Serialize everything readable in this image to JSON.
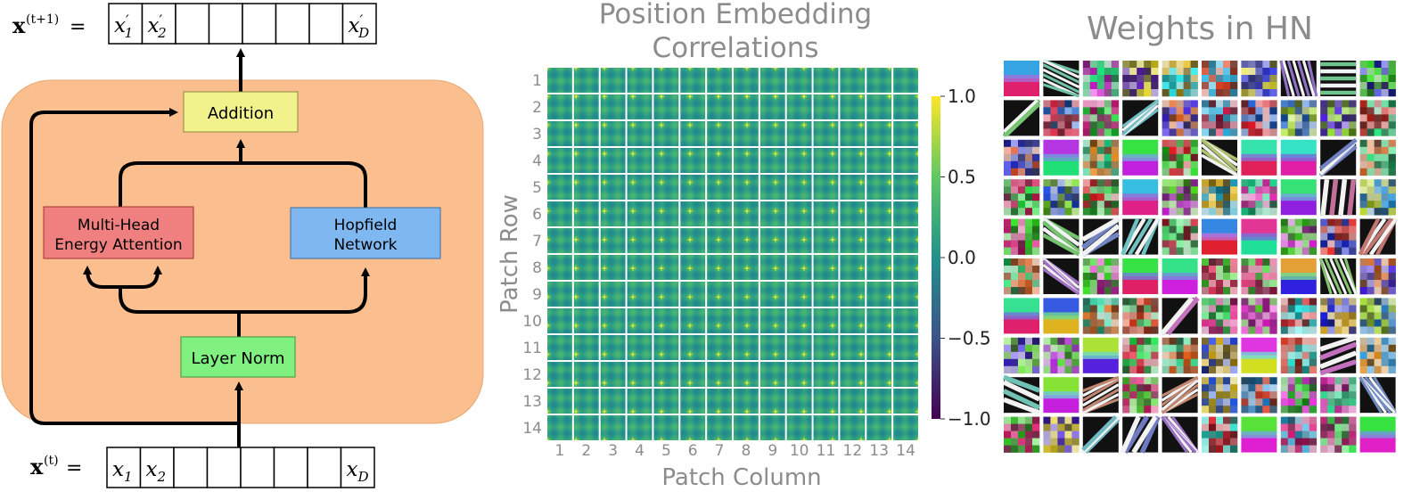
{
  "diagram": {
    "output_label": "x(t+1) =",
    "output_vec": {
      "bold": "x",
      "sup": "(t+1)",
      "cells": [
        {
          "base": "x",
          "prime": "′",
          "sub": "1"
        },
        {
          "base": "x",
          "prime": "′",
          "sub": "2"
        },
        {
          "base": "",
          "prime": "",
          "sub": ""
        },
        {
          "base": "",
          "prime": "",
          "sub": ""
        },
        {
          "base": "",
          "prime": "",
          "sub": ""
        },
        {
          "base": "",
          "prime": "",
          "sub": ""
        },
        {
          "base": "",
          "prime": "",
          "sub": ""
        },
        {
          "base": "x",
          "prime": "′",
          "sub": "D"
        }
      ]
    },
    "input_vec": {
      "bold": "x",
      "sup": "(t)",
      "cells": [
        {
          "base": "x",
          "prime": "",
          "sub": "1"
        },
        {
          "base": "x",
          "prime": "",
          "sub": "2"
        },
        {
          "base": "",
          "prime": "",
          "sub": ""
        },
        {
          "base": "",
          "prime": "",
          "sub": ""
        },
        {
          "base": "",
          "prime": "",
          "sub": ""
        },
        {
          "base": "",
          "prime": "",
          "sub": ""
        },
        {
          "base": "",
          "prime": "",
          "sub": ""
        },
        {
          "base": "x",
          "prime": "",
          "sub": "D"
        }
      ]
    },
    "equals": "=",
    "boxes": {
      "addition": "Addition",
      "attention_line1": "Multi-Head",
      "attention_line2": "Energy Attention",
      "hopfield_line1": "Hopfield",
      "hopfield_line2": "Network",
      "layernorm": "Layer Norm"
    },
    "colors": {
      "block_bg": "#fbbf8f",
      "addition": "#f2f28c",
      "attention": "#f08080",
      "hopfield": "#7fb8f0",
      "layernorm": "#80f080"
    }
  },
  "chart_data": {
    "type": "heatmap",
    "title_line1": "Position Embedding",
    "title_line2": "Correlations",
    "xlabel": "Patch Column",
    "ylabel": "Patch Row",
    "xticks": [
      "1",
      "2",
      "3",
      "4",
      "5",
      "6",
      "7",
      "8",
      "9",
      "10",
      "11",
      "12",
      "13",
      "14"
    ],
    "yticks": [
      "1",
      "2",
      "3",
      "4",
      "5",
      "6",
      "7",
      "8",
      "9",
      "10",
      "11",
      "12",
      "13",
      "14"
    ],
    "grid_rows": 14,
    "grid_cols": 14,
    "colorbar": {
      "min": -1.0,
      "max": 1.0,
      "ticks": [
        "1.0",
        "0.5",
        "0.0",
        "−0.5",
        "−1.0"
      ],
      "colormap": "viridis"
    }
  },
  "weights": {
    "title": "Weights in HN",
    "rows": 10,
    "cols": 10
  }
}
